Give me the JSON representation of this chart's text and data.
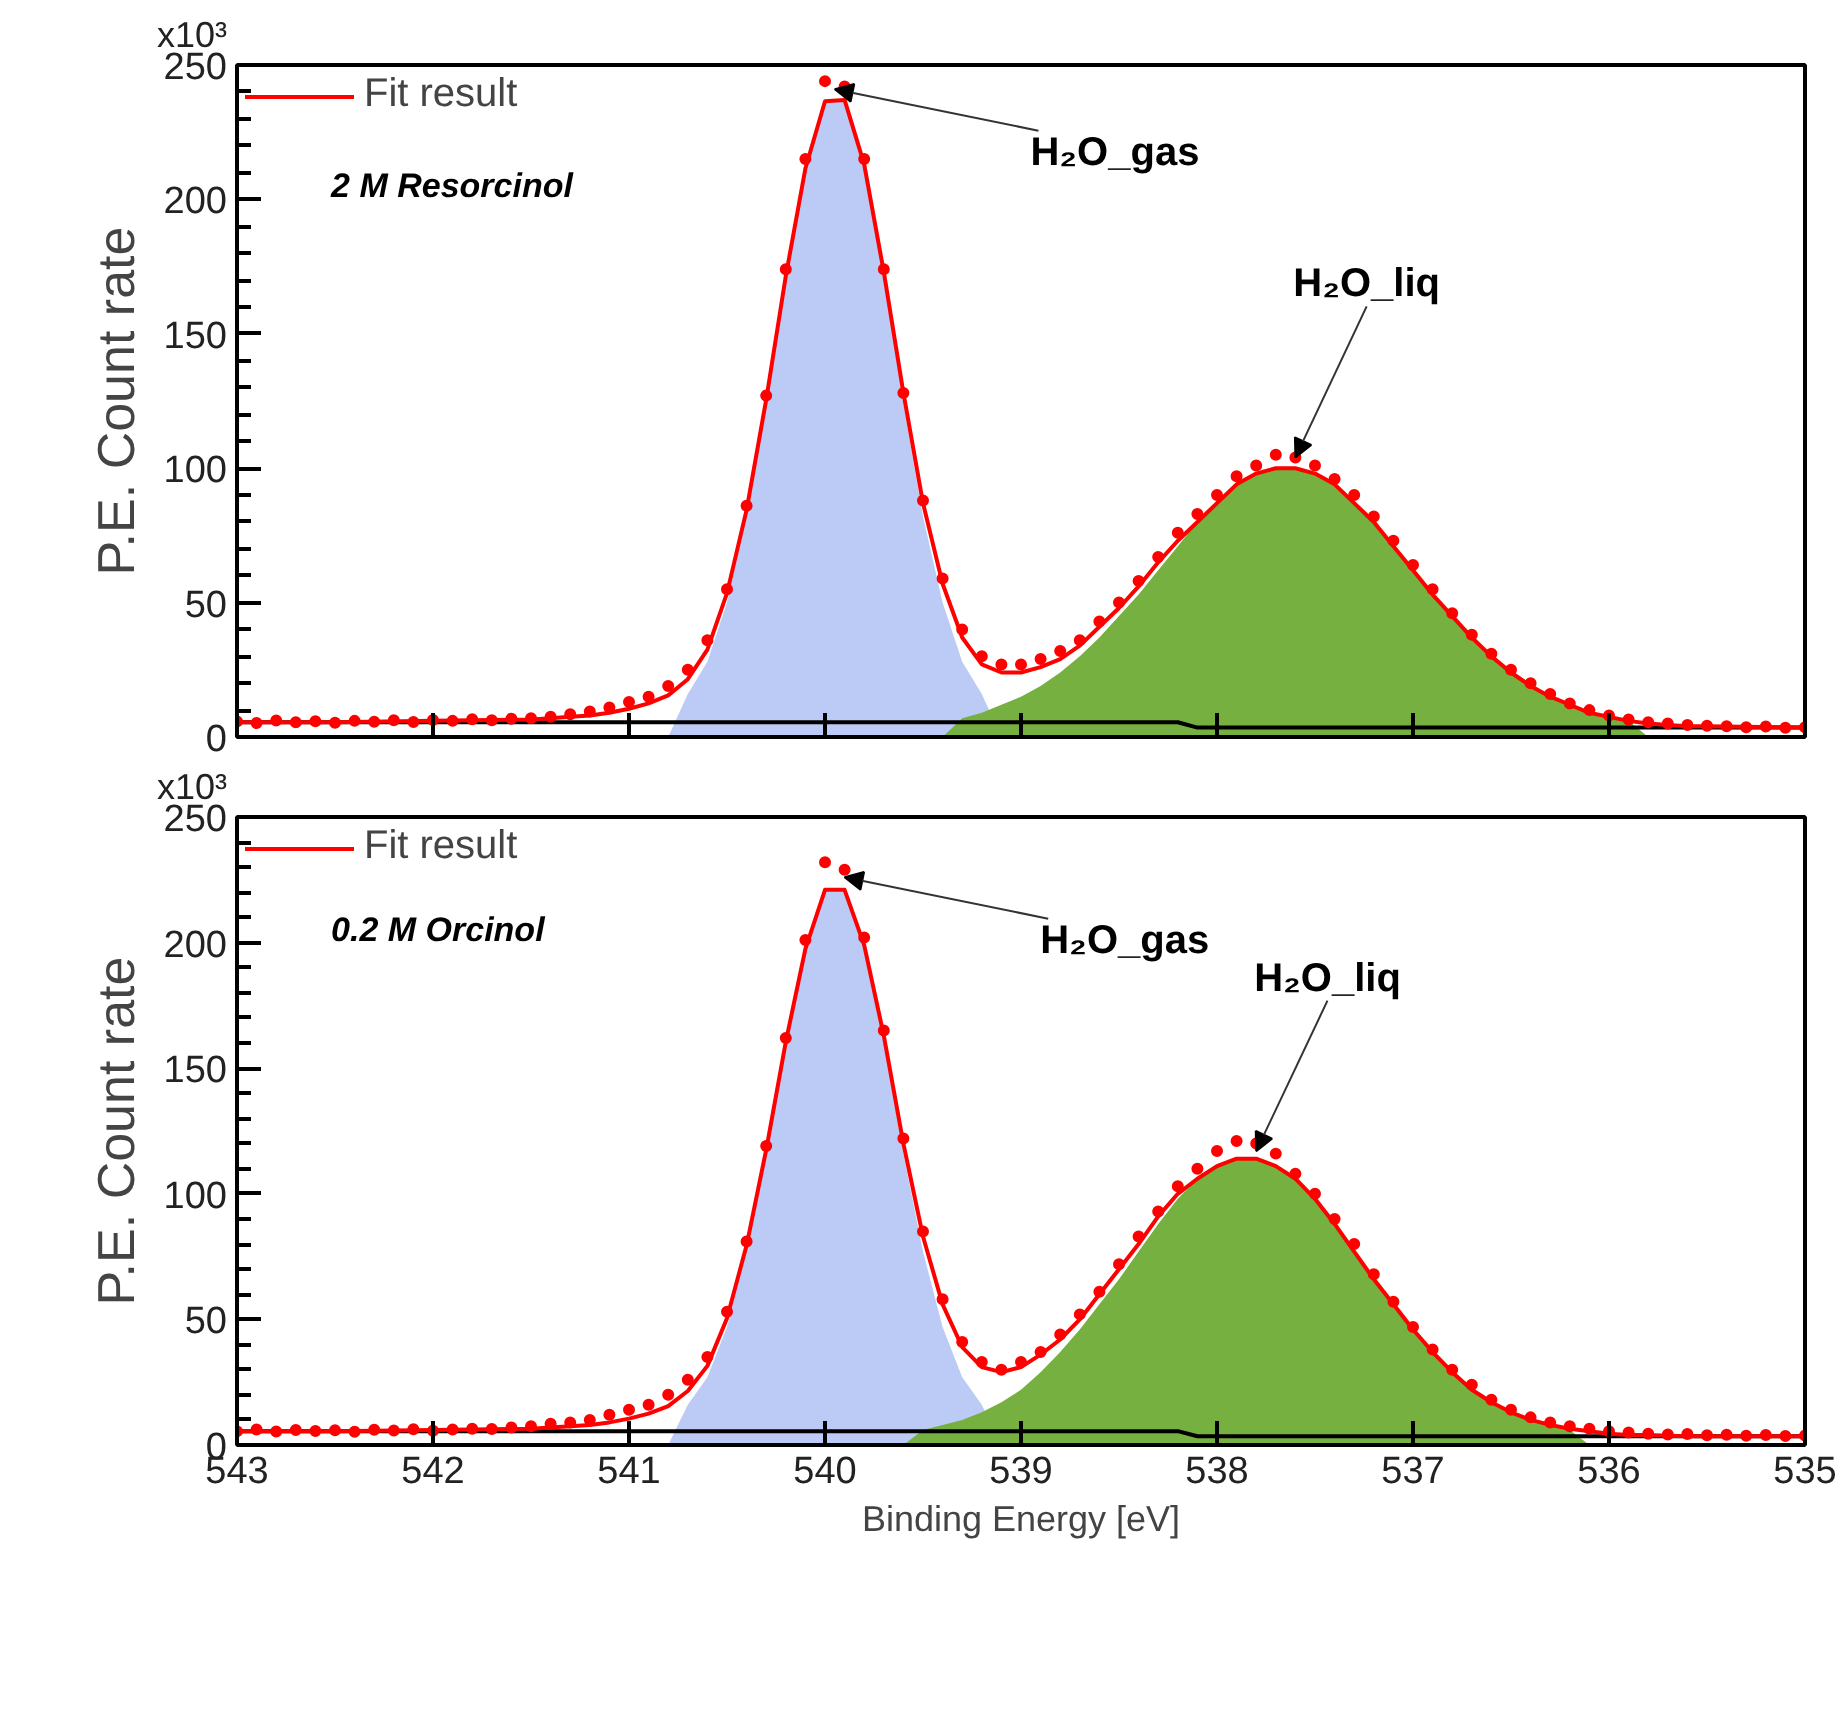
{
  "chart_data": [
    {
      "type": "line",
      "ylabel": "P.E. Count rate",
      "xlim": [
        543,
        535
      ],
      "xticks": [
        543,
        542,
        541,
        540,
        539,
        538,
        537,
        536,
        535
      ],
      "ylim": [
        0,
        250
      ],
      "yticks": [
        0,
        {
          "value": 10,
          "label": null
        },
        {
          "value": 20,
          "label": null
        },
        {
          "value": 30,
          "label": null
        },
        {
          "value": 40,
          "label": null
        },
        50,
        {
          "value": 60,
          "label": null
        },
        {
          "value": 70,
          "label": null
        },
        {
          "value": 80,
          "label": null
        },
        {
          "value": 90,
          "label": null
        },
        100,
        {
          "value": 110,
          "label": null
        },
        {
          "value": 120,
          "label": null
        },
        {
          "value": 130,
          "label": null
        },
        {
          "value": 140,
          "label": null
        },
        150,
        {
          "value": 160,
          "label": null
        },
        {
          "value": 170,
          "label": null
        },
        {
          "value": 180,
          "label": null
        },
        {
          "value": 190,
          "label": null
        },
        200,
        {
          "value": 210,
          "label": null
        },
        {
          "value": 220,
          "label": null
        },
        {
          "value": 230,
          "label": null
        },
        {
          "value": 240,
          "label": null
        },
        250
      ],
      "tick_labels": "y",
      "grid": false,
      "legend": "top left",
      "annotations": [
        "x10³",
        {
          "text": "H₂O_gas",
          "x": 539.95,
          "y": 241
        },
        {
          "text": "H₂O_liq",
          "x": 537.6,
          "y": 104
        },
        "2 M Resorcinol"
      ],
      "series": [
        {
          "type": "area",
          "color": "#bccbf5",
          "x": [
            540.8,
            540.7,
            540.6,
            540.5,
            540.4,
            540.3,
            540.2,
            540.1,
            540.0,
            539.9,
            539.8,
            539.7,
            539.6,
            539.5,
            539.4,
            539.3,
            539.2,
            539.1
          ],
          "values": [
            0,
            16,
            28,
            50,
            82,
            124,
            171,
            212,
            237,
            237,
            212,
            171,
            124,
            82,
            50,
            28,
            16,
            0
          ]
        },
        {
          "type": "area",
          "color": "#76b041",
          "x": [
            539.4,
            539.3,
            539.2,
            539.1,
            539.0,
            538.9,
            538.8,
            538.7,
            538.6,
            538.5,
            538.4,
            538.3,
            538.2,
            538.1,
            538.0,
            537.9,
            537.8,
            537.7,
            537.6,
            537.5,
            537.4,
            537.3,
            537.2,
            537.1,
            537.0,
            536.9,
            536.8,
            536.7,
            536.6,
            536.5,
            536.4,
            536.3,
            536.2,
            536.1,
            536.0,
            535.9,
            535.8
          ],
          "values": [
            0,
            7,
            9,
            12,
            15,
            19,
            24,
            30,
            37,
            45,
            53,
            62,
            71,
            80,
            87,
            94,
            98,
            100,
            100,
            98,
            94,
            87,
            80,
            71,
            62,
            53,
            45,
            37,
            30,
            24,
            19,
            15,
            12,
            9,
            7,
            6,
            0
          ]
        },
        {
          "type": "line",
          "color": "#000000",
          "line_style": "solid",
          "x": [
            543,
            538.2,
            538.1,
            535
          ],
          "values": [
            5.5,
            5.5,
            3.5,
            3.5
          ]
        },
        {
          "type": "scatter",
          "color": "#ff0000",
          "marker": "circle",
          "x": [
            543.0,
            542.9,
            542.8,
            542.7,
            542.6,
            542.5,
            542.4,
            542.3,
            542.2,
            542.1,
            542.0,
            541.9,
            541.8,
            541.7,
            541.6,
            541.5,
            541.4,
            541.3,
            541.2,
            541.1,
            541.0,
            540.9,
            540.8,
            540.7,
            540.6,
            540.5,
            540.4,
            540.3,
            540.2,
            540.1,
            540.0,
            539.9,
            539.8,
            539.7,
            539.6,
            539.5,
            539.4,
            539.3,
            539.2,
            539.1,
            539.0,
            538.9,
            538.8,
            538.7,
            538.6,
            538.5,
            538.4,
            538.3,
            538.2,
            538.1,
            538.0,
            537.9,
            537.8,
            537.7,
            537.6,
            537.5,
            537.4,
            537.3,
            537.2,
            537.1,
            537.0,
            536.9,
            536.8,
            536.7,
            536.6,
            536.5,
            536.4,
            536.3,
            536.2,
            536.1,
            536.0,
            535.9,
            535.8,
            535.7,
            535.6,
            535.5,
            535.4,
            535.3,
            535.2,
            535.1,
            535.0
          ],
          "values": [
            5.8,
            5.2,
            6.1,
            5.5,
            5.9,
            5.3,
            6.0,
            5.7,
            6.2,
            5.6,
            6.3,
            6.0,
            6.6,
            6.2,
            6.8,
            7,
            7.5,
            8.5,
            9.5,
            11,
            13,
            15,
            19,
            25,
            36,
            55,
            86,
            127,
            174,
            215,
            244,
            242,
            215,
            174,
            128,
            88,
            59,
            40,
            30,
            27,
            27,
            29,
            32,
            36,
            43,
            50,
            58,
            67,
            76,
            83,
            90,
            97,
            101,
            105,
            104,
            101,
            96,
            90,
            82,
            73,
            64,
            55,
            46,
            38,
            31,
            25,
            20,
            16,
            12.5,
            10,
            8,
            6.5,
            5.5,
            5,
            4.5,
            4.2,
            4,
            3.6,
            3.9,
            3.4,
            3.6
          ]
        },
        {
          "type": "line",
          "name": "Fit result",
          "color": "#ff0000",
          "line_style": "solid",
          "x": [
            543,
            542.5,
            542,
            541.5,
            541.4,
            541.3,
            541.2,
            541.1,
            541.0,
            540.9,
            540.8,
            540.7,
            540.6,
            540.5,
            540.4,
            540.3,
            540.2,
            540.1,
            540.0,
            539.9,
            539.8,
            539.7,
            539.6,
            539.5,
            539.4,
            539.3,
            539.2,
            539.1,
            539.0,
            538.9,
            538.8,
            538.7,
            538.6,
            538.5,
            538.4,
            538.3,
            538.2,
            538.1,
            538.0,
            537.9,
            537.8,
            537.7,
            537.6,
            537.5,
            537.4,
            537.3,
            537.2,
            537.1,
            537.0,
            536.9,
            536.8,
            536.7,
            536.6,
            536.5,
            536.4,
            536.3,
            536.2,
            536.1,
            536.0,
            535.9,
            535.8,
            535.7,
            535.6,
            535.5,
            535
          ],
          "values": [
            5.5,
            5.5,
            6,
            6.5,
            7,
            7.5,
            8,
            9,
            10.5,
            12.5,
            15.5,
            21.5,
            32.5,
            53.5,
            84.5,
            125.5,
            171.5,
            211.5,
            236.5,
            237,
            213,
            173,
            128,
            87,
            57,
            37,
            27,
            24,
            24,
            26,
            29,
            34,
            41,
            48,
            56,
            65,
            73,
            80,
            87,
            94,
            98,
            100,
            100,
            98,
            94,
            87,
            80,
            71,
            62,
            53,
            45,
            37,
            30,
            24,
            19,
            15,
            12,
            9,
            7.5,
            6,
            5,
            4.5,
            4,
            4,
            3.5
          ]
        }
      ]
    },
    {
      "type": "line",
      "xlabel": "Binding Energy [eV]",
      "ylabel": "P.E. Count rate",
      "xlim": [
        543,
        535
      ],
      "xticks": [
        543,
        542,
        541,
        540,
        539,
        538,
        537,
        536,
        535
      ],
      "ylim": [
        0,
        250
      ],
      "yticks": [
        0,
        {
          "value": 10,
          "label": null
        },
        {
          "value": 20,
          "label": null
        },
        {
          "value": 30,
          "label": null
        },
        {
          "value": 40,
          "label": null
        },
        50,
        {
          "value": 60,
          "label": null
        },
        {
          "value": 70,
          "label": null
        },
        {
          "value": 80,
          "label": null
        },
        {
          "value": 90,
          "label": null
        },
        100,
        {
          "value": 110,
          "label": null
        },
        {
          "value": 120,
          "label": null
        },
        {
          "value": 130,
          "label": null
        },
        {
          "value": 140,
          "label": null
        },
        150,
        {
          "value": 160,
          "label": null
        },
        {
          "value": 170,
          "label": null
        },
        {
          "value": 180,
          "label": null
        },
        {
          "value": 190,
          "label": null
        },
        200,
        {
          "value": 210,
          "label": null
        },
        {
          "value": 220,
          "label": null
        },
        {
          "value": 230,
          "label": null
        },
        {
          "value": 240,
          "label": null
        },
        250
      ],
      "grid": false,
      "legend": "top left",
      "annotations": [
        "x10³",
        {
          "text": "H₂O_gas",
          "x": 539.9,
          "y": 226
        },
        {
          "text": "H₂O_liq",
          "x": 537.8,
          "y": 117
        },
        "0.2 M Orcinol"
      ],
      "series": [
        {
          "type": "area",
          "color": "#bccbf5",
          "x": [
            540.8,
            540.7,
            540.6,
            540.5,
            540.4,
            540.3,
            540.2,
            540.1,
            540.0,
            539.9,
            539.8,
            539.7,
            539.6,
            539.5,
            539.4,
            539.3,
            539.2,
            539.1
          ],
          "values": [
            0,
            16,
            27,
            47,
            77,
            116,
            160,
            198,
            221,
            221,
            198,
            160,
            116,
            77,
            47,
            27,
            16,
            0
          ]
        },
        {
          "type": "area",
          "color": "#76b041",
          "x": [
            539.6,
            539.5,
            539.4,
            539.3,
            539.2,
            539.1,
            539.0,
            538.9,
            538.8,
            538.7,
            538.6,
            538.5,
            538.4,
            538.3,
            538.2,
            538.1,
            538.0,
            537.9,
            537.8,
            537.7,
            537.6,
            537.5,
            537.4,
            537.3,
            537.2,
            537.1,
            537.0,
            536.9,
            536.8,
            536.7,
            536.6,
            536.5,
            536.4,
            536.3,
            536.2,
            536.1
          ],
          "values": [
            0,
            6,
            8,
            10,
            13,
            17,
            22,
            29,
            37,
            46,
            56,
            66,
            77,
            88,
            98,
            106,
            111,
            114,
            114,
            111,
            106,
            98,
            88,
            77,
            66,
            56,
            46,
            37,
            29,
            22,
            17,
            13,
            10,
            8,
            6,
            0
          ]
        },
        {
          "type": "line",
          "color": "#000000",
          "line_style": "solid",
          "x": [
            543,
            538.2,
            538.1,
            535
          ],
          "values": [
            5.5,
            5.5,
            3.5,
            3.5
          ]
        },
        {
          "type": "scatter",
          "color": "#ff0000",
          "marker": "circle",
          "x": [
            543.0,
            542.9,
            542.8,
            542.7,
            542.6,
            542.5,
            542.4,
            542.3,
            542.2,
            542.1,
            542.0,
            541.9,
            541.8,
            541.7,
            541.6,
            541.5,
            541.4,
            541.3,
            541.2,
            541.1,
            541.0,
            540.9,
            540.8,
            540.7,
            540.6,
            540.5,
            540.4,
            540.3,
            540.2,
            540.1,
            540.0,
            539.9,
            539.8,
            539.7,
            539.6,
            539.5,
            539.4,
            539.3,
            539.2,
            539.1,
            539.0,
            538.9,
            538.8,
            538.7,
            538.6,
            538.5,
            538.4,
            538.3,
            538.2,
            538.1,
            538.0,
            537.9,
            537.8,
            537.7,
            537.6,
            537.5,
            537.4,
            537.3,
            537.2,
            537.1,
            537.0,
            536.9,
            536.8,
            536.7,
            536.6,
            536.5,
            536.4,
            536.3,
            536.2,
            536.1,
            536.0,
            535.9,
            535.8,
            535.7,
            535.6,
            535.5,
            535.4,
            535.3,
            535.2,
            535.1,
            535.0
          ],
          "values": [
            5.5,
            6.2,
            5.4,
            6.0,
            5.6,
            5.9,
            5.3,
            6.1,
            5.8,
            6.3,
            5.7,
            6.2,
            6.5,
            6.4,
            7.0,
            7.5,
            8.5,
            9,
            10,
            12,
            14,
            16,
            20,
            26,
            35,
            53,
            81,
            119,
            162,
            201,
            232,
            229,
            202,
            165,
            122,
            85,
            58,
            41,
            33,
            30,
            33,
            37,
            44,
            52,
            61,
            72,
            83,
            93,
            103,
            110,
            117,
            121,
            120,
            116,
            108,
            100,
            90,
            80,
            68,
            57,
            47,
            38,
            30,
            24,
            18,
            14,
            11,
            9,
            7.5,
            6.5,
            5.5,
            5,
            4.5,
            4.2,
            4.4,
            3.9,
            4.1,
            3.7,
            4.0,
            3.6,
            3.8
          ]
        },
        {
          "type": "line",
          "name": "Fit result",
          "color": "#ff0000",
          "line_style": "solid",
          "x": [
            543,
            542.5,
            542,
            541.5,
            541.4,
            541.3,
            541.2,
            541.1,
            541.0,
            540.9,
            540.8,
            540.7,
            540.6,
            540.5,
            540.4,
            540.3,
            540.2,
            540.1,
            540.0,
            539.9,
            539.8,
            539.7,
            539.6,
            539.5,
            539.4,
            539.3,
            539.2,
            539.1,
            539.0,
            538.9,
            538.8,
            538.7,
            538.6,
            538.5,
            538.4,
            538.3,
            538.2,
            538.1,
            538.0,
            537.9,
            537.8,
            537.7,
            537.6,
            537.5,
            537.4,
            537.3,
            537.2,
            537.1,
            537.0,
            536.9,
            536.8,
            536.7,
            536.6,
            536.5,
            536.4,
            536.3,
            536.2,
            536.1,
            536.0,
            535.9,
            535.8,
            535.7,
            535.6,
            535.5,
            535
          ],
          "values": [
            5.5,
            5.5,
            6,
            6.5,
            7,
            7.5,
            8,
            9,
            10.5,
            12.5,
            15.5,
            21.5,
            31.5,
            50.5,
            79.5,
            117.5,
            160.5,
            197.5,
            221,
            221,
            199,
            163,
            120,
            83,
            56,
            39,
            31,
            29,
            31,
            36,
            42,
            50,
            60,
            70,
            80,
            91,
            100,
            106,
            111,
            114,
            114,
            111,
            106,
            98,
            88,
            77,
            66,
            56,
            46,
            37,
            29,
            22,
            17,
            13,
            10,
            8,
            6.5,
            5.5,
            4.5,
            4,
            4,
            3.7,
            3.5,
            3.5,
            3.5
          ]
        }
      ]
    }
  ]
}
